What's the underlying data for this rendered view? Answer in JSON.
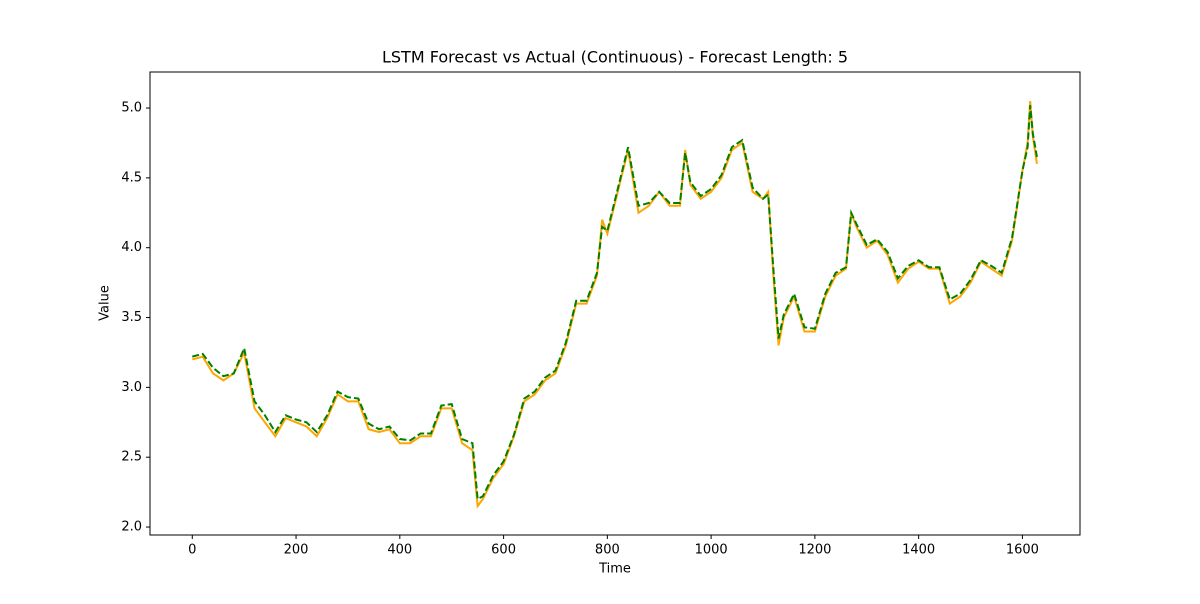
{
  "chart_data": {
    "type": "line",
    "title": "LSTM Forecast vs Actual (Continuous) - Forecast Length: 5",
    "xlabel": "Time",
    "ylabel": "Value",
    "x": [
      0,
      20,
      40,
      60,
      80,
      100,
      120,
      140,
      160,
      180,
      200,
      220,
      240,
      260,
      280,
      300,
      320,
      340,
      360,
      380,
      400,
      420,
      440,
      460,
      480,
      500,
      520,
      540,
      550,
      560,
      580,
      600,
      620,
      640,
      660,
      680,
      700,
      720,
      740,
      760,
      780,
      790,
      800,
      820,
      840,
      860,
      880,
      900,
      920,
      940,
      950,
      960,
      980,
      1000,
      1020,
      1040,
      1060,
      1080,
      1100,
      1110,
      1120,
      1130,
      1140,
      1160,
      1180,
      1200,
      1220,
      1240,
      1260,
      1270,
      1280,
      1300,
      1320,
      1340,
      1360,
      1380,
      1400,
      1420,
      1440,
      1460,
      1480,
      1500,
      1520,
      1540,
      1560,
      1580,
      1600,
      1610,
      1615,
      1620,
      1628
    ],
    "series": [
      {
        "color": "#ffa500",
        "dash": false,
        "values": [
          3.2,
          3.22,
          3.1,
          3.05,
          3.1,
          3.25,
          2.85,
          2.75,
          2.65,
          2.78,
          2.75,
          2.72,
          2.65,
          2.78,
          2.95,
          2.9,
          2.9,
          2.7,
          2.68,
          2.7,
          2.6,
          2.6,
          2.65,
          2.65,
          2.85,
          2.85,
          2.6,
          2.55,
          2.15,
          2.2,
          2.35,
          2.45,
          2.65,
          2.9,
          2.95,
          3.05,
          3.1,
          3.3,
          3.6,
          3.6,
          3.8,
          4.2,
          4.1,
          4.4,
          4.7,
          4.25,
          4.3,
          4.4,
          4.3,
          4.3,
          4.7,
          4.45,
          4.35,
          4.4,
          4.5,
          4.7,
          4.75,
          4.4,
          4.35,
          4.4,
          3.8,
          3.3,
          3.5,
          3.65,
          3.4,
          3.4,
          3.65,
          3.8,
          3.85,
          4.25,
          4.15,
          4.0,
          4.05,
          3.95,
          3.75,
          3.85,
          3.9,
          3.85,
          3.85,
          3.6,
          3.65,
          3.75,
          3.9,
          3.85,
          3.8,
          4.05,
          4.55,
          4.75,
          5.05,
          4.8,
          4.6
        ]
      },
      {
        "color": "#008000",
        "dash": true,
        "values": [
          3.22,
          3.24,
          3.14,
          3.08,
          3.1,
          3.28,
          2.9,
          2.8,
          2.68,
          2.8,
          2.77,
          2.75,
          2.68,
          2.8,
          2.97,
          2.93,
          2.92,
          2.74,
          2.7,
          2.72,
          2.63,
          2.62,
          2.67,
          2.67,
          2.87,
          2.88,
          2.63,
          2.6,
          2.2,
          2.22,
          2.37,
          2.47,
          2.66,
          2.92,
          2.97,
          3.07,
          3.12,
          3.32,
          3.62,
          3.62,
          3.82,
          4.15,
          4.12,
          4.42,
          4.72,
          4.3,
          4.32,
          4.4,
          4.32,
          4.32,
          4.68,
          4.47,
          4.37,
          4.42,
          4.52,
          4.72,
          4.77,
          4.43,
          4.35,
          4.38,
          3.85,
          3.35,
          3.52,
          3.67,
          3.43,
          3.42,
          3.67,
          3.82,
          3.86,
          4.25,
          4.17,
          4.02,
          4.06,
          3.97,
          3.78,
          3.87,
          3.91,
          3.86,
          3.86,
          3.63,
          3.67,
          3.77,
          3.91,
          3.87,
          3.82,
          4.07,
          4.55,
          4.72,
          5.02,
          4.82,
          4.65
        ]
      }
    ],
    "xlim": [
      -81.5,
      1711
    ],
    "ylim": [
      1.943,
      5.258
    ],
    "xticks": [
      0,
      200,
      400,
      600,
      800,
      1000,
      1200,
      1400,
      1600
    ],
    "yticks": [
      {
        "value": 2,
        "label": "2.0"
      },
      2.5,
      {
        "value": 3,
        "label": "3.0"
      },
      3.5,
      {
        "value": 4,
        "label": "4.0"
      },
      4.5,
      {
        "value": 5,
        "label": "5.0"
      }
    ]
  }
}
